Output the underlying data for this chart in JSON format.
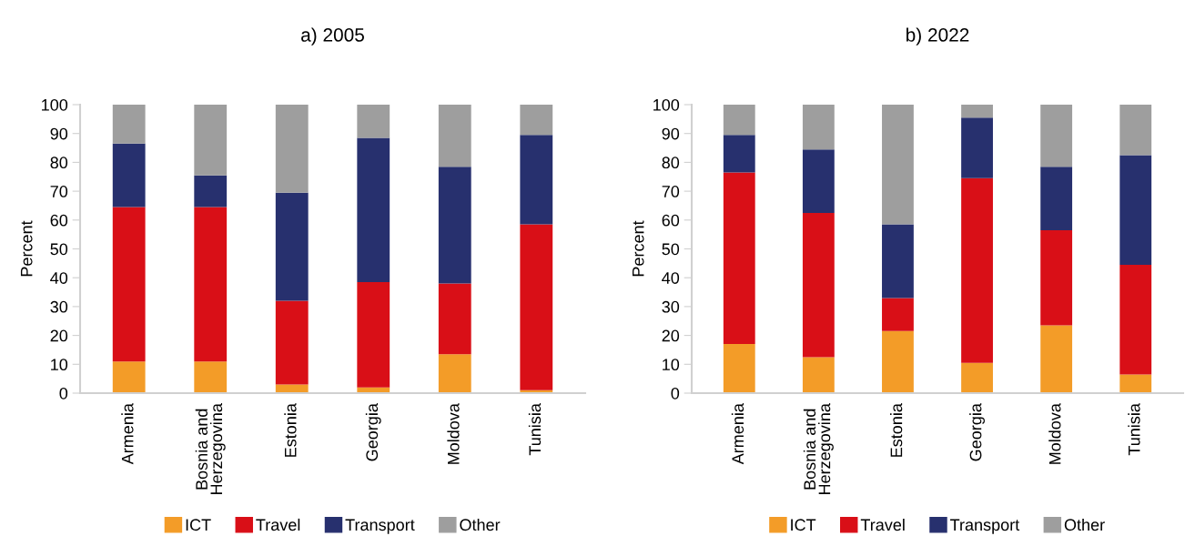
{
  "chart_data": [
    {
      "type": "bar",
      "title": "a) 2005",
      "ylabel": "Percent",
      "stacked": true,
      "categories": [
        "Armenia",
        "Bosnia and\nHerzegovina",
        "Estonia",
        "Georgia",
        "Moldova",
        "Tunisia"
      ],
      "ylim": [
        0,
        100
      ],
      "yticks": [
        0,
        10,
        20,
        30,
        40,
        50,
        60,
        70,
        80,
        90,
        100
      ],
      "grid": false,
      "legend": "bottom",
      "series": [
        {
          "name": "ICT",
          "color": "#f39c28",
          "values": [
            11,
            11,
            3,
            2,
            13.5,
            1
          ]
        },
        {
          "name": "Travel",
          "color": "#d90f17",
          "values": [
            53.5,
            53.5,
            29,
            36.5,
            24.5,
            57.5
          ]
        },
        {
          "name": "Transport",
          "color": "#27306e",
          "values": [
            22,
            11,
            37.5,
            50,
            40.5,
            31
          ]
        },
        {
          "name": "Other",
          "color": "#9e9e9e",
          "values": [
            13.5,
            24.5,
            30.5,
            11.5,
            21.5,
            10.5
          ]
        }
      ]
    },
    {
      "type": "bar",
      "title": "b) 2022",
      "ylabel": "Percent",
      "stacked": true,
      "categories": [
        "Armenia",
        "Bosnia and\nHerzegovina",
        "Estonia",
        "Georgia",
        "Moldova",
        "Tunisia"
      ],
      "ylim": [
        0,
        100
      ],
      "yticks": [
        0,
        10,
        20,
        30,
        40,
        50,
        60,
        70,
        80,
        90,
        100
      ],
      "grid": false,
      "legend": "bottom",
      "series": [
        {
          "name": "ICT",
          "color": "#f39c28",
          "values": [
            17,
            12.5,
            21.5,
            10.5,
            23.5,
            6.5
          ]
        },
        {
          "name": "Travel",
          "color": "#d90f17",
          "values": [
            59.5,
            50,
            11.5,
            64,
            33,
            38
          ]
        },
        {
          "name": "Transport",
          "color": "#27306e",
          "values": [
            13,
            22,
            25.5,
            21,
            22,
            38
          ]
        },
        {
          "name": "Other",
          "color": "#9e9e9e",
          "values": [
            10.5,
            15.5,
            41.5,
            4.5,
            21.5,
            17.5
          ]
        }
      ]
    }
  ]
}
